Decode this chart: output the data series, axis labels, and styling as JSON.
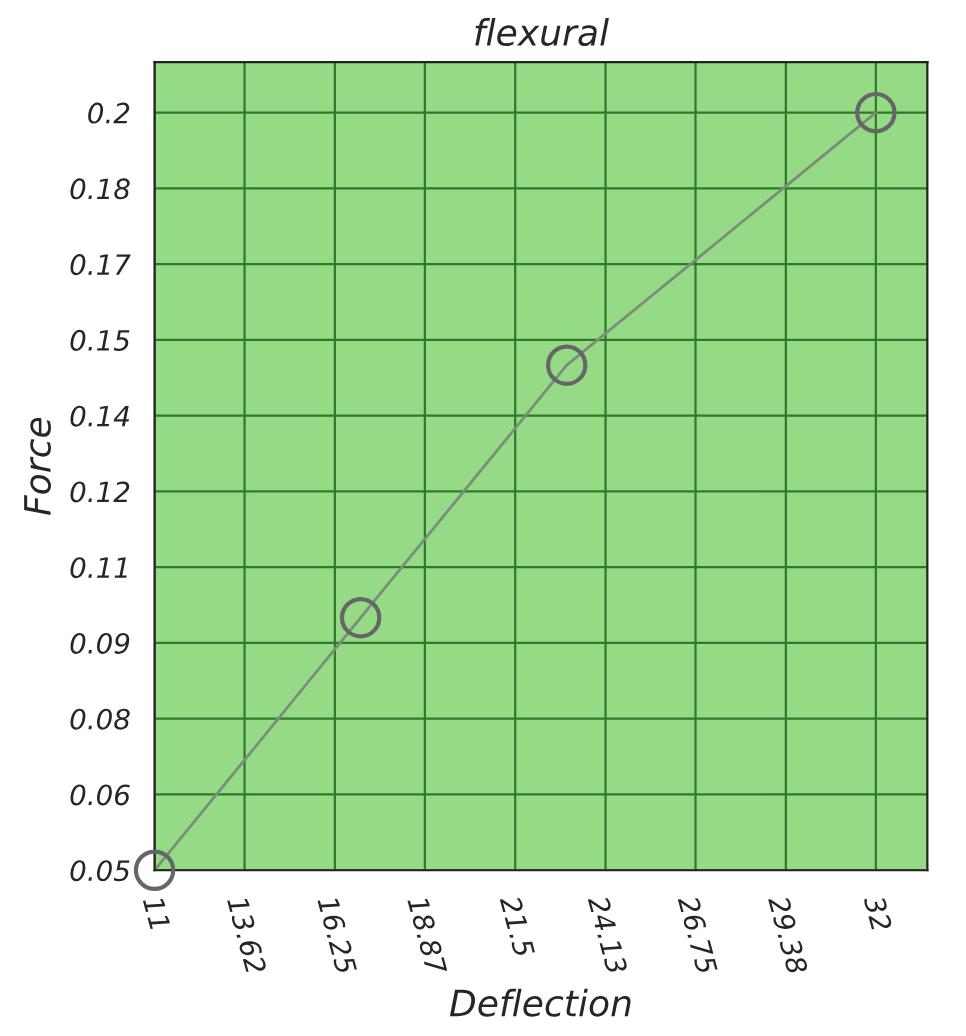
{
  "chart_data": {
    "type": "line",
    "title": "flexural",
    "xlabel": "Deflection",
    "ylabel": "Force",
    "x": [
      11,
      17,
      23,
      32
    ],
    "series": [
      {
        "color": "#7a8f78",
        "values": [
          0.05,
          0.1,
          0.15,
          0.2
        ]
      }
    ],
    "xlim": [
      11,
      33.5
    ],
    "ylim": [
      0.05,
      0.21
    ],
    "xticks": [
      11,
      13.62,
      16.25,
      18.87,
      21.5,
      24.13,
      26.75,
      29.38,
      32
    ],
    "yticks": [
      {
        "value": 0.05,
        "label": "0.05"
      },
      {
        "value": 0.065,
        "label": "0.06"
      },
      {
        "value": 0.08,
        "label": "0.08"
      },
      {
        "value": 0.095,
        "label": "0.09"
      },
      {
        "value": 0.11,
        "label": "0.11"
      },
      {
        "value": 0.125,
        "label": "0.12"
      },
      {
        "value": 0.14,
        "label": "0.14"
      },
      {
        "value": 0.155,
        "label": "0.15"
      },
      {
        "value": 0.17,
        "label": "0.17"
      },
      {
        "value": 0.185,
        "label": "0.18"
      },
      {
        "value": 0.2,
        "label": "0.2"
      }
    ],
    "grid": true,
    "marker": "circle",
    "line_style": "solid"
  }
}
